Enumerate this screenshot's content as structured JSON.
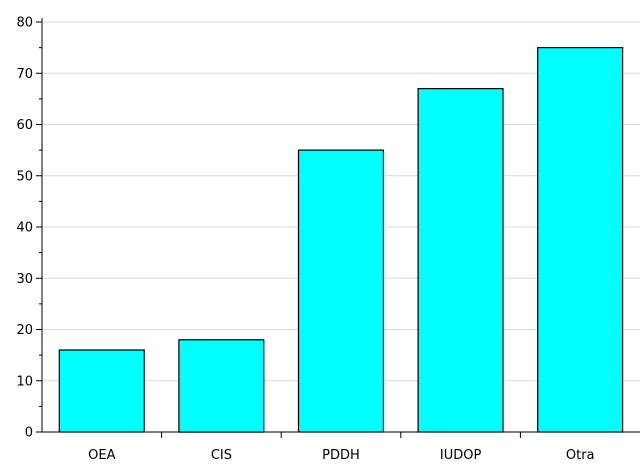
{
  "chart_data": {
    "type": "bar",
    "categories": [
      "OEA",
      "CIS",
      "PDDH",
      "IUDOP",
      "Otra"
    ],
    "values": [
      16,
      18,
      55,
      67,
      75
    ],
    "title": "",
    "xlabel": "",
    "ylabel": "",
    "ylim": [
      0,
      80
    ],
    "yticks": [
      "0",
      "10",
      "20",
      "30",
      "40",
      "50",
      "60",
      "70",
      "80"
    ],
    "grid": true,
    "legend": "none"
  },
  "colors": {
    "bar_fill": "#00ffff",
    "bar_stroke": "#000000",
    "grid": "#d9d9d9",
    "axis": "#000000"
  }
}
